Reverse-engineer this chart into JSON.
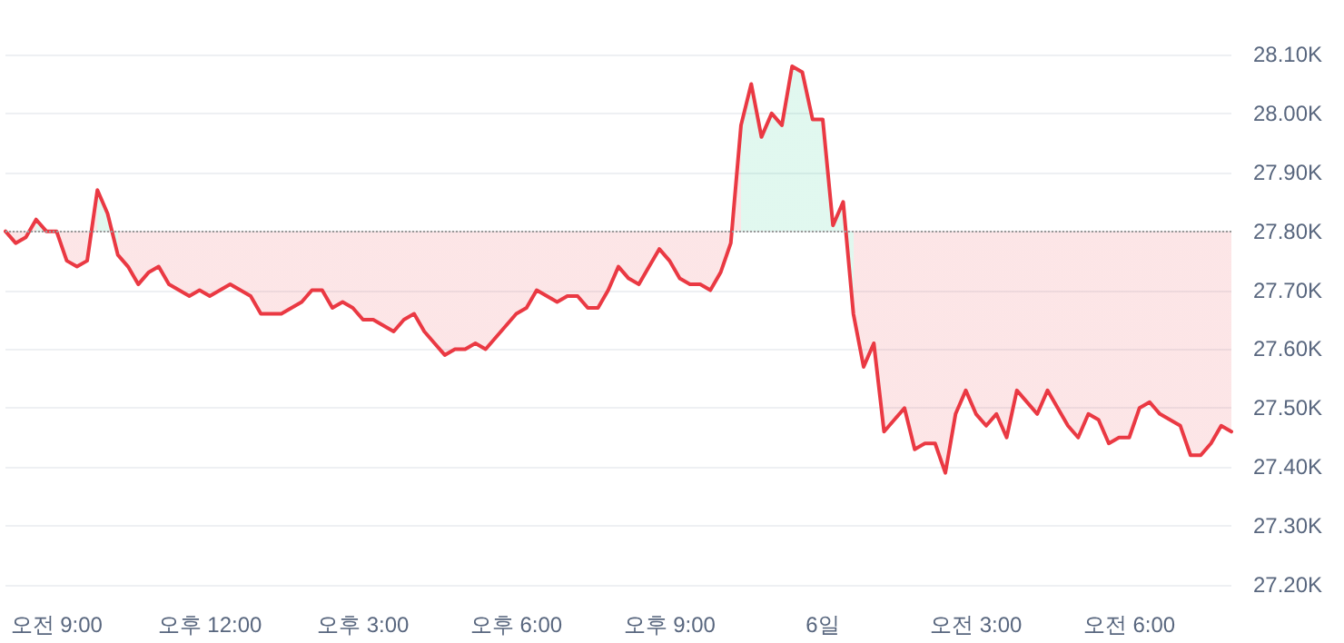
{
  "chart_data": {
    "type": "line",
    "marker": "none",
    "grid": "y",
    "line_style": "solid",
    "categories": [
      null,
      null,
      null,
      null,
      null,
      "오전 9:00",
      null,
      null,
      null,
      null,
      null,
      null,
      null,
      null,
      null,
      null,
      null,
      null,
      null,
      null,
      "오후 12:00",
      null,
      null,
      null,
      null,
      null,
      null,
      null,
      null,
      null,
      null,
      null,
      null,
      null,
      null,
      "오후 3:00",
      null,
      null,
      null,
      null,
      null,
      null,
      null,
      null,
      null,
      null,
      null,
      null,
      null,
      null,
      "오후 6:00",
      null,
      null,
      null,
      null,
      null,
      null,
      null,
      null,
      null,
      null,
      null,
      null,
      null,
      null,
      "오후 9:00",
      null,
      null,
      null,
      null,
      null,
      null,
      null,
      null,
      null,
      null,
      null,
      null,
      null,
      null,
      "6일",
      null,
      null,
      null,
      null,
      null,
      null,
      null,
      null,
      null,
      null,
      null,
      null,
      null,
      null,
      "오전 3:00",
      null,
      null,
      null,
      null,
      null,
      null,
      null,
      null,
      null,
      null,
      null,
      null,
      null,
      null,
      "오전 6:00",
      null,
      null,
      null,
      null,
      null,
      null,
      null,
      null,
      null,
      null
    ],
    "series": [
      {
        "color": "#ea3943",
        "values": [
          27.8,
          27.78,
          27.79,
          27.82,
          27.8,
          27.8,
          27.75,
          27.74,
          27.75,
          27.87,
          27.83,
          27.76,
          27.74,
          27.71,
          27.73,
          27.74,
          27.71,
          27.7,
          27.69,
          27.7,
          27.69,
          27.7,
          27.71,
          27.7,
          27.69,
          27.66,
          27.66,
          27.66,
          27.67,
          27.68,
          27.7,
          27.7,
          27.67,
          27.68,
          27.67,
          27.65,
          27.65,
          27.64,
          27.63,
          27.65,
          27.66,
          27.63,
          27.61,
          27.59,
          27.6,
          27.6,
          27.61,
          27.6,
          27.62,
          27.64,
          27.66,
          27.67,
          27.7,
          27.69,
          27.68,
          27.69,
          27.69,
          27.67,
          27.67,
          27.7,
          27.74,
          27.72,
          27.71,
          27.74,
          27.77,
          27.75,
          27.72,
          27.71,
          27.71,
          27.7,
          27.73,
          27.78,
          27.98,
          28.05,
          27.96,
          28.0,
          27.98,
          28.08,
          28.07,
          27.99,
          27.99,
          27.81,
          27.85,
          27.66,
          27.57,
          27.61,
          27.46,
          27.48,
          27.5,
          27.43,
          27.44,
          27.44,
          27.39,
          27.49,
          27.53,
          27.49,
          27.47,
          27.49,
          27.45,
          27.53,
          27.51,
          27.49,
          27.53,
          27.5,
          27.47,
          27.45,
          27.49,
          27.48,
          27.44,
          27.45,
          27.45,
          27.5,
          27.51,
          27.49,
          27.48,
          27.47,
          27.42,
          27.42,
          27.44,
          27.47,
          27.46
        ],
        "colors": [
          "#ea3943",
          "#ea3943",
          "#ea3943",
          "#16c784",
          "#ea3943",
          "#ea3943",
          "#ea3943",
          "#ea3943",
          "#ea3943",
          "#16c784",
          "#16c784",
          "#ea3943",
          "#ea3943",
          "#ea3943",
          "#ea3943",
          "#ea3943",
          "#ea3943",
          "#ea3943",
          "#ea3943",
          "#ea3943",
          "#ea3943",
          "#ea3943",
          "#ea3943",
          "#ea3943",
          "#ea3943",
          "#ea3943",
          "#ea3943",
          "#ea3943",
          "#ea3943",
          "#ea3943",
          "#ea3943",
          "#ea3943",
          "#ea3943",
          "#ea3943",
          "#ea3943",
          "#ea3943",
          "#ea3943",
          "#ea3943",
          "#ea3943",
          "#ea3943",
          "#ea3943",
          "#ea3943",
          "#ea3943",
          "#ea3943",
          "#ea3943",
          "#ea3943",
          "#ea3943",
          "#ea3943",
          "#ea3943",
          "#ea3943",
          "#ea3943",
          "#ea3943",
          "#ea3943",
          "#ea3943",
          "#ea3943",
          "#ea3943",
          "#ea3943",
          "#ea3943",
          "#ea3943",
          "#ea3943",
          "#ea3943",
          "#ea3943",
          "#ea3943",
          "#ea3943",
          "#ea3943",
          "#ea3943",
          "#ea3943",
          "#ea3943",
          "#ea3943",
          "#ea3943",
          "#ea3943",
          "#ea3943",
          "#16c784",
          "#16c784",
          "#16c784",
          "#16c784",
          "#16c784",
          "#16c784",
          "#16c784",
          "#16c784",
          "#16c784",
          "#16c784",
          "#16c784",
          "#ea3943",
          "#ea3943",
          "#ea3943",
          "#ea3943",
          "#ea3943",
          "#ea3943",
          "#ea3943",
          "#ea3943",
          "#ea3943",
          "#ea3943",
          "#ea3943",
          "#ea3943",
          "#ea3943",
          "#ea3943",
          "#ea3943",
          "#ea3943",
          "#ea3943",
          "#ea3943",
          "#ea3943",
          "#ea3943",
          "#ea3943",
          "#ea3943",
          "#ea3943",
          "#ea3943",
          "#ea3943",
          "#ea3943",
          "#ea3943",
          "#ea3943",
          "#ea3943",
          "#ea3943",
          "#ea3943",
          "#ea3943",
          "#ea3943",
          "#ea3943",
          "#ea3943",
          "#ea3943",
          "#ea3943",
          "#ea3943"
        ]
      }
    ],
    "ref_lines": [
      {
        "axis": "y",
        "value": 27.8,
        "color": "#999999",
        "line_style": "dotted"
      }
    ],
    "ylim": [
      27.2,
      28.1
    ],
    "yticks": [
      {
        "value": 27.2,
        "label": "27.20K"
      },
      {
        "value": 27.3,
        "label": "27.30K"
      },
      {
        "value": 27.4,
        "label": "27.40K"
      },
      {
        "value": 27.5,
        "label": "27.50K"
      },
      {
        "value": 27.6,
        "label": "27.60K"
      },
      {
        "value": 27.7,
        "label": "27.70K"
      },
      {
        "value": 27.8,
        "label": "27.80K"
      },
      {
        "value": 27.9,
        "label": "27.90K"
      },
      {
        "value": 28.0,
        "label": "28.00K"
      },
      {
        "value": 28.1,
        "label": "28.10K"
      }
    ]
  }
}
